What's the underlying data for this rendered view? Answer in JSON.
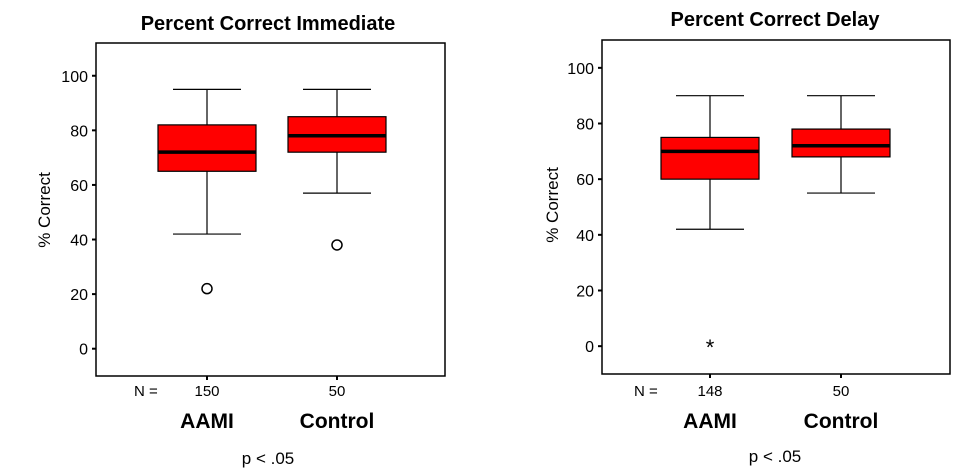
{
  "chart_data": [
    {
      "type": "box",
      "title": "Percent Correct Immediate",
      "ylabel": "% Correct",
      "ylim": [
        -10,
        112
      ],
      "yticks": [
        "0",
        "20",
        "40",
        "60",
        "80",
        "100"
      ],
      "ytick_values": [
        0,
        20,
        40,
        60,
        80,
        100
      ],
      "n_label": "N =",
      "footnote": "p < .05",
      "box_color": "#ff0000",
      "groups": [
        {
          "name": "AAMI",
          "n": "150",
          "min": 42,
          "q1": 65,
          "median": 72,
          "q3": 82,
          "max": 95,
          "outliers": [
            {
              "value": 22,
              "marker": "o"
            }
          ]
        },
        {
          "name": "Control",
          "n": "50",
          "min": 57,
          "q1": 72,
          "median": 78,
          "q3": 85,
          "max": 95,
          "outliers": [
            {
              "value": 38,
              "marker": "o"
            }
          ]
        }
      ]
    },
    {
      "type": "box",
      "title": "Percent Correct Delay",
      "ylabel": "% Correct",
      "ylim": [
        -10,
        110
      ],
      "yticks": [
        "0",
        "20",
        "40",
        "60",
        "80",
        "100"
      ],
      "ytick_values": [
        0,
        20,
        40,
        60,
        80,
        100
      ],
      "n_label": "N =",
      "footnote": "p < .05",
      "box_color": "#ff0000",
      "groups": [
        {
          "name": "AAMI",
          "n": "148",
          "min": 42,
          "q1": 60,
          "median": 70,
          "q3": 75,
          "max": 90,
          "outliers": [
            {
              "value": 0,
              "marker": "*"
            }
          ]
        },
        {
          "name": "Control",
          "n": "50",
          "min": 55,
          "q1": 68,
          "median": 72,
          "q3": 78,
          "max": 90,
          "outliers": []
        }
      ]
    }
  ]
}
